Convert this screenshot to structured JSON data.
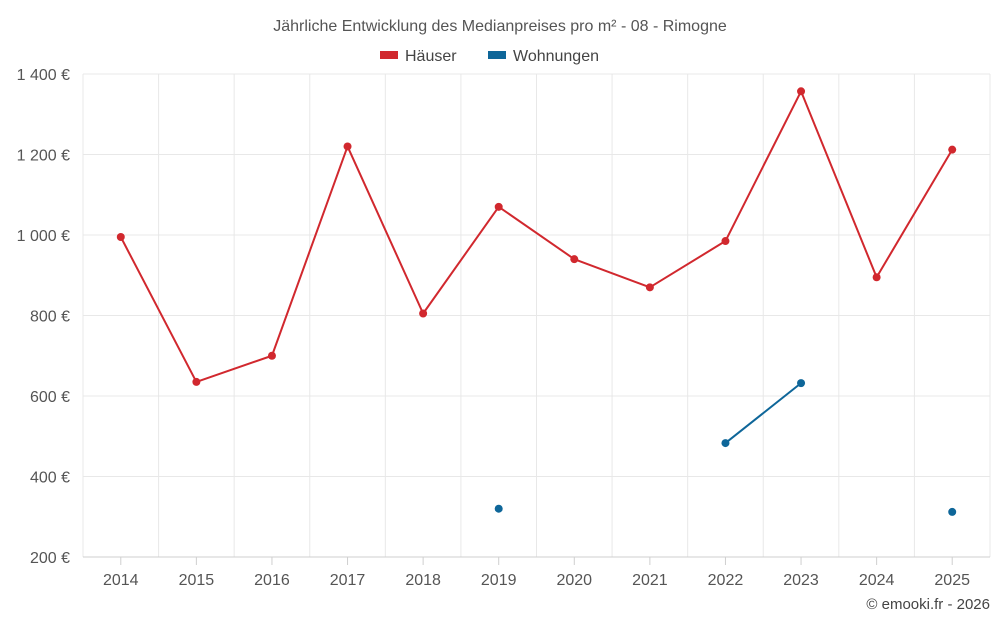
{
  "chart_data": {
    "type": "line",
    "title": "Jährliche Entwicklung des Medianpreises pro m² - 08 - Rimogne",
    "categories": [
      "2014",
      "2015",
      "2016",
      "2017",
      "2018",
      "2019",
      "2020",
      "2021",
      "2022",
      "2023",
      "2024",
      "2025"
    ],
    "yticks": [
      200,
      400,
      600,
      800,
      1000,
      1200,
      1400
    ],
    "ytick_labels": [
      "200 €",
      "400 €",
      "600 €",
      "800 €",
      "1 000 €",
      "1 200 €",
      "1 400 €"
    ],
    "ylim": [
      200,
      1400
    ],
    "grid": true,
    "legend_position": "top-center",
    "series": [
      {
        "name": "Häuser",
        "color": "#d1282e",
        "values": [
          995,
          635,
          700,
          1220,
          805,
          1070,
          940,
          870,
          985,
          1357,
          895,
          1212
        ]
      },
      {
        "name": "Wohnungen",
        "color": "#0e6699",
        "values": [
          null,
          null,
          null,
          null,
          null,
          320,
          null,
          null,
          483,
          632,
          null,
          312
        ]
      }
    ]
  },
  "footer": {
    "copyright": "© emooki.fr - 2026"
  }
}
